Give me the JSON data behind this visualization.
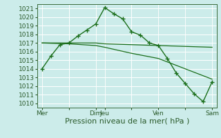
{
  "bg_color": "#ccecea",
  "grid_color": "#aaddcc",
  "line_color": "#1a6e1a",
  "marker_color": "#1a6e1a",
  "xlabel": "Pression niveau de la mer( hPa )",
  "ylim": [
    1009.5,
    1021.5
  ],
  "yticks": [
    1010,
    1011,
    1012,
    1013,
    1014,
    1015,
    1016,
    1017,
    1018,
    1019,
    1020,
    1021
  ],
  "xtick_labels": [
    "Mer",
    "",
    "Dim",
    "Jeu",
    "",
    "Ven",
    "",
    "Sam"
  ],
  "xtick_positions": [
    0,
    3,
    6,
    7,
    10,
    13,
    16,
    19
  ],
  "vline_positions": [
    0,
    6,
    7,
    13,
    16,
    19
  ],
  "series1_x": [
    0,
    1,
    2,
    3,
    4,
    5,
    6,
    7,
    8,
    9,
    10,
    11,
    12,
    13,
    14,
    15,
    16,
    17,
    18,
    19
  ],
  "series1_y": [
    1014.0,
    1015.5,
    1016.8,
    1017.0,
    1017.8,
    1018.5,
    1019.2,
    1021.1,
    1020.4,
    1019.8,
    1018.3,
    1017.9,
    1017.0,
    1016.7,
    1015.2,
    1013.5,
    1012.3,
    1011.1,
    1010.2,
    1012.5
  ],
  "series2_x": [
    0,
    3,
    6,
    7,
    10,
    13,
    19
  ],
  "series2_y": [
    1017.0,
    1017.0,
    1017.0,
    1016.9,
    1016.8,
    1016.7,
    1016.5
  ],
  "series3_x": [
    0,
    3,
    6,
    7,
    10,
    13,
    16,
    19
  ],
  "series3_y": [
    1017.0,
    1016.9,
    1016.7,
    1016.5,
    1015.8,
    1015.2,
    1014.0,
    1012.8
  ],
  "xlabel_fontsize": 8,
  "tick_fontsize": 6.5
}
